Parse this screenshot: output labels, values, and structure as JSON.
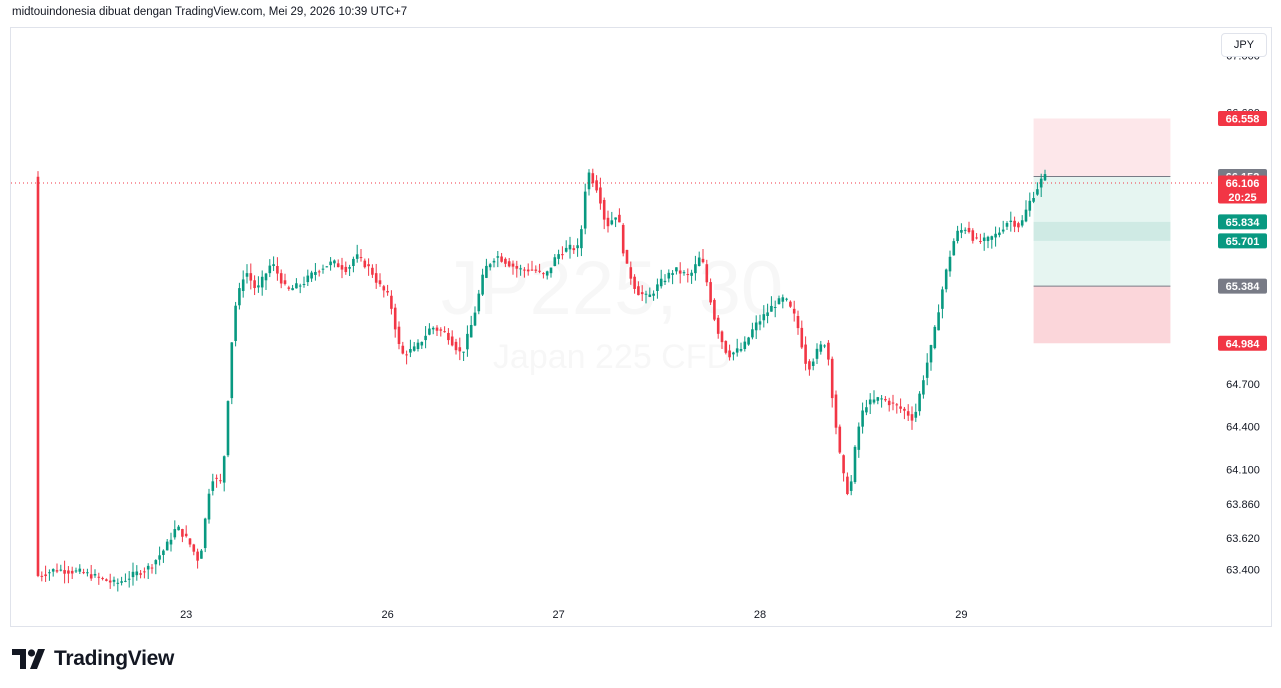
{
  "header": {
    "text": "midtouindonesia dibuat dengan TradingView.com, Mei 29, 2026 10:39 UTC+7"
  },
  "currency": "JPY",
  "watermark": {
    "symbol": "JP225, 30",
    "name": "Japan 225 CFD"
  },
  "branding": {
    "logo_text": "TradingView"
  },
  "colors": {
    "up": "#089981",
    "down": "#f23645",
    "grid": "#e0e3eb",
    "axis_text": "#131722"
  },
  "chart_data": {
    "type": "candlestick",
    "y_range": [
      63.4,
      67.3
    ],
    "x_range": [
      0,
      300
    ],
    "y_ticks": [
      63.4,
      63.62,
      63.86,
      64.1,
      64.4,
      64.7,
      67.0
    ],
    "y_tick_labels": [
      "63.400",
      "63.620",
      "63.860",
      "64.100",
      "64.400",
      "64.700",
      "67.000"
    ],
    "x_ticks": [
      {
        "label": "23",
        "x": 39
      },
      {
        "label": "26",
        "x": 92
      },
      {
        "label": "27",
        "x": 137
      },
      {
        "label": "28",
        "x": 190
      },
      {
        "label": "29",
        "x": 243
      }
    ],
    "price_tags": [
      {
        "label": "66.558",
        "value": 66.558,
        "color": "#f23645"
      },
      {
        "label": "66.152",
        "value": 66.152,
        "color": "#787b86"
      },
      {
        "label": "66.106",
        "sub": "20:25",
        "value": 66.106,
        "color": "#f23645"
      },
      {
        "label": "65.834",
        "value": 65.834,
        "color": "#089981"
      },
      {
        "label": "65.701",
        "value": 65.701,
        "color": "#089981"
      },
      {
        "label": "65.384",
        "value": 65.384,
        "color": "#787b86"
      },
      {
        "label": "64.984",
        "value": 64.984,
        "color": "#f23645"
      }
    ],
    "partial_tick_label": "66.600",
    "current_price": 66.106,
    "position": {
      "x_start": 262,
      "x_end": 298,
      "target": 66.558,
      "entry": 66.152,
      "stop_entry": 65.384,
      "stop": 64.984,
      "zone_top": 65.834,
      "zone_bottom": 65.701
    },
    "anchors": [
      [
        0,
        63.35
      ],
      [
        5,
        63.4
      ],
      [
        12,
        63.38
      ],
      [
        21,
        63.3
      ],
      [
        30,
        63.42
      ],
      [
        34,
        63.55
      ],
      [
        37,
        63.7
      ],
      [
        40,
        63.6
      ],
      [
        43,
        63.45
      ],
      [
        46,
        64.05
      ],
      [
        49,
        64.0
      ],
      [
        52,
        65.2
      ],
      [
        55,
        65.5
      ],
      [
        58,
        65.35
      ],
      [
        62,
        65.55
      ],
      [
        66,
        65.35
      ],
      [
        70,
        65.4
      ],
      [
        74,
        65.5
      ],
      [
        78,
        65.55
      ],
      [
        82,
        65.5
      ],
      [
        84,
        65.6
      ],
      [
        88,
        65.5
      ],
      [
        90,
        65.4
      ],
      [
        93,
        65.3
      ],
      [
        96,
        64.9
      ],
      [
        100,
        64.95
      ],
      [
        104,
        65.1
      ],
      [
        108,
        65.05
      ],
      [
        112,
        64.9
      ],
      [
        115,
        65.15
      ],
      [
        118,
        65.5
      ],
      [
        121,
        65.6
      ],
      [
        124,
        65.55
      ],
      [
        127,
        65.5
      ],
      [
        131,
        65.5
      ],
      [
        134,
        65.45
      ],
      [
        137,
        65.6
      ],
      [
        140,
        65.65
      ],
      [
        143,
        65.65
      ],
      [
        145,
        66.2
      ],
      [
        148,
        66.05
      ],
      [
        150,
        65.8
      ],
      [
        153,
        65.9
      ],
      [
        155,
        65.55
      ],
      [
        158,
        65.35
      ],
      [
        161,
        65.3
      ],
      [
        164,
        65.4
      ],
      [
        168,
        65.5
      ],
      [
        172,
        65.45
      ],
      [
        175,
        65.6
      ],
      [
        177,
        65.35
      ],
      [
        179,
        65.1
      ],
      [
        182,
        64.9
      ],
      [
        186,
        64.95
      ],
      [
        189,
        65.1
      ],
      [
        194,
        65.25
      ],
      [
        197,
        65.3
      ],
      [
        200,
        65.15
      ],
      [
        203,
        64.8
      ],
      [
        206,
        64.95
      ],
      [
        208,
        65.0
      ],
      [
        210,
        64.5
      ],
      [
        212,
        64.1
      ],
      [
        214,
        63.9
      ],
      [
        216,
        64.35
      ],
      [
        218,
        64.55
      ],
      [
        222,
        64.6
      ],
      [
        226,
        64.55
      ],
      [
        229,
        64.5
      ],
      [
        231,
        64.45
      ],
      [
        234,
        64.8
      ],
      [
        236,
        65.0
      ],
      [
        238,
        65.3
      ],
      [
        240,
        65.55
      ],
      [
        242,
        65.75
      ],
      [
        245,
        65.8
      ],
      [
        247,
        65.7
      ],
      [
        250,
        65.7
      ],
      [
        253,
        65.75
      ],
      [
        256,
        65.85
      ],
      [
        259,
        65.8
      ],
      [
        261,
        65.95
      ],
      [
        263,
        66.05
      ],
      [
        265,
        66.15
      ]
    ]
  }
}
